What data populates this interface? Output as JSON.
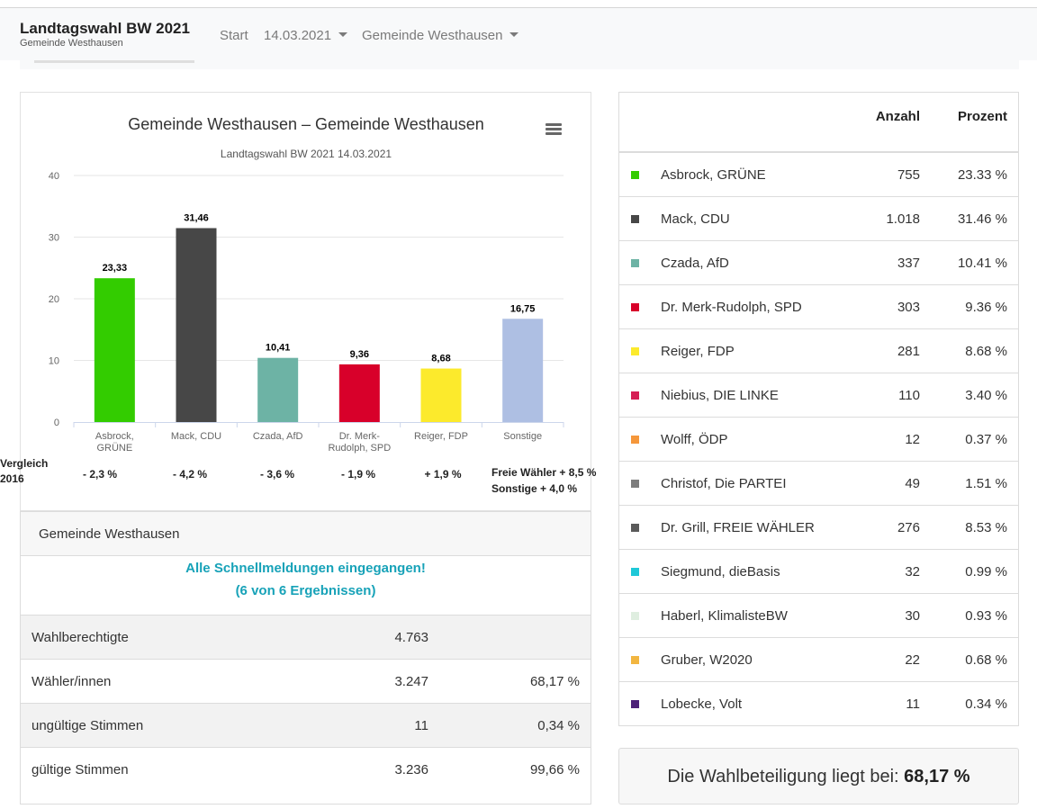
{
  "nav": {
    "title": "Landtagswahl BW 2021",
    "subtitle": "Gemeinde Westhausen",
    "start": "Start",
    "date": "14.03.2021",
    "region": "Gemeinde Westhausen"
  },
  "chart_data": {
    "type": "bar",
    "title": "Gemeinde Westhausen – Gemeinde Westhausen",
    "subtitle": "Landtagswahl BW 2021 14.03.2021",
    "categories": [
      [
        "Asbrock,",
        "GRÜNE"
      ],
      [
        "Mack, CDU"
      ],
      [
        "Czada, AfD"
      ],
      [
        "Dr. Merk-",
        "Rudolph, SPD"
      ],
      [
        "Reiger, FDP"
      ],
      [
        "Sonstige"
      ]
    ],
    "values": [
      23.33,
      31.46,
      10.41,
      9.36,
      8.68,
      16.75
    ],
    "value_labels": [
      "23,33",
      "31,46",
      "10,41",
      "9,36",
      "8,68",
      "16,75"
    ],
    "colors": [
      "#33cc00",
      "#474747",
      "#6db3a5",
      "#d8002a",
      "#fcea2c",
      "#aebfe3"
    ],
    "ylim": [
      0,
      40
    ],
    "yticks": [
      "0",
      "10",
      "20",
      "30",
      "40"
    ],
    "grid": true
  },
  "comparison": {
    "label_line1": "Vergleich",
    "label_line2": "2016",
    "values": [
      "- 2,3 %",
      "- 4,2 %",
      "- 3,6 %",
      "- 1,9 %",
      "+ 1,9 %"
    ],
    "others_line1": "Freie Wähler + 8,5 %",
    "others_line2": "Sonstige + 4,0 %"
  },
  "info": {
    "header": "Gemeinde Westhausen",
    "status_line1": "Alle Schnellmeldungen eingegangen!",
    "status_line2": "(6 von 6 Ergebnissen)",
    "rows": [
      {
        "label": "Wahlberechtigte",
        "value": "4.763",
        "percent": ""
      },
      {
        "label": "Wähler/innen",
        "value": "3.247",
        "percent": "68,17 %"
      },
      {
        "label": "ungültige Stimmen",
        "value": "11",
        "percent": "0,34 %"
      },
      {
        "label": "gültige Stimmen",
        "value": "3.236",
        "percent": "99,66 %"
      }
    ]
  },
  "results": {
    "col_count": "Anzahl",
    "col_percent": "Prozent",
    "rows": [
      {
        "name": "Asbrock, GRÜNE",
        "count": "755",
        "percent": "23.33 %",
        "color": "#33cc00"
      },
      {
        "name": "Mack, CDU",
        "count": "1.018",
        "percent": "31.46 %",
        "color": "#474747"
      },
      {
        "name": "Czada, AfD",
        "count": "337",
        "percent": "10.41 %",
        "color": "#6db3a5"
      },
      {
        "name": "Dr. Merk-Rudolph, SPD",
        "count": "303",
        "percent": "9.36 %",
        "color": "#d8002a"
      },
      {
        "name": "Reiger, FDP",
        "count": "281",
        "percent": "8.68 %",
        "color": "#fcea2c"
      },
      {
        "name": "Niebius, DIE LINKE",
        "count": "110",
        "percent": "3.40 %",
        "color": "#d61e55"
      },
      {
        "name": "Wolff, ÖDP",
        "count": "12",
        "percent": "0.37 %",
        "color": "#f5973b"
      },
      {
        "name": "Christof, Die PARTEI",
        "count": "49",
        "percent": "1.51 %",
        "color": "#7d7d7d"
      },
      {
        "name": "Dr. Grill, FREIE WÄHLER",
        "count": "276",
        "percent": "8.53 %",
        "color": "#5a5a5a"
      },
      {
        "name": "Siegmund, dieBasis",
        "count": "32",
        "percent": "0.99 %",
        "color": "#1ec8d8"
      },
      {
        "name": "Haberl, KlimalisteBW",
        "count": "30",
        "percent": "0.93 %",
        "color": "#dfeee0"
      },
      {
        "name": "Gruber, W2020",
        "count": "22",
        "percent": "0.68 %",
        "color": "#f2b640"
      },
      {
        "name": "Lobecke, Volt",
        "count": "11",
        "percent": "0.34 %",
        "color": "#4d2178"
      }
    ]
  },
  "turnout": {
    "label": "Die Wahlbeteiligung liegt bei:",
    "value": "68,17 %"
  }
}
